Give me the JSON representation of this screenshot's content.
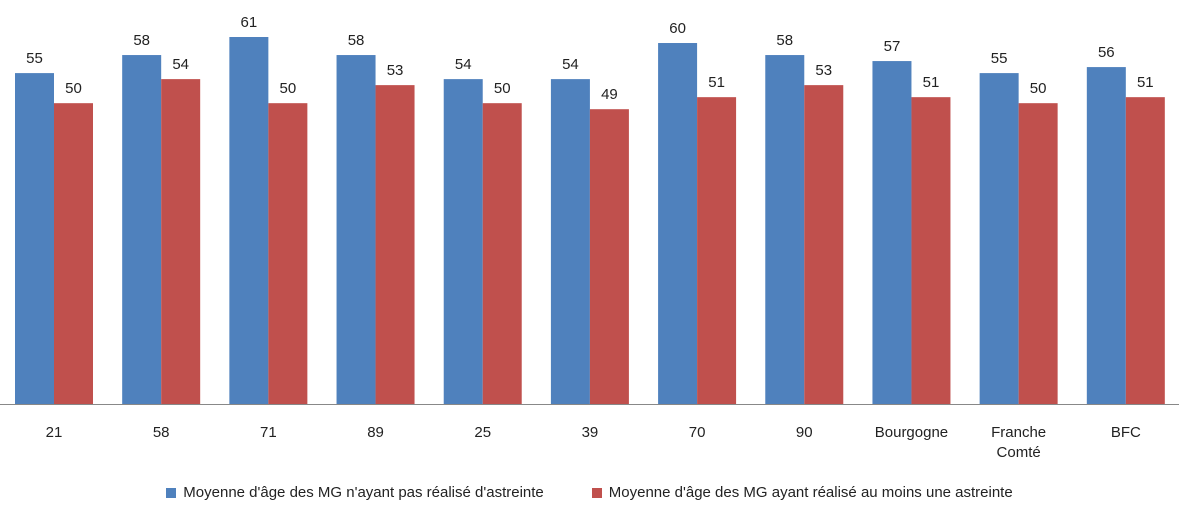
{
  "chart_data": {
    "type": "bar",
    "categories": [
      "21",
      "58",
      "71",
      "89",
      "25",
      "39",
      "70",
      "90",
      "Bourgogne",
      "Franche\nComté",
      "BFC"
    ],
    "series": [
      {
        "name": "Moyenne d'âge des MG n'ayant pas réalisé d'astreinte",
        "color": "#4F81BD",
        "values": [
          55,
          58,
          61,
          58,
          54,
          54,
          60,
          58,
          57,
          55,
          56
        ]
      },
      {
        "name": "Moyenne d'âge des MG ayant réalisé au moins une astreinte",
        "color": "#C0504D",
        "values": [
          50,
          54,
          50,
          53,
          50,
          49,
          51,
          53,
          51,
          50,
          51
        ]
      }
    ],
    "ylim": [
      0,
      61
    ],
    "grid": false,
    "legend_position": "bottom",
    "data_labels": true
  }
}
